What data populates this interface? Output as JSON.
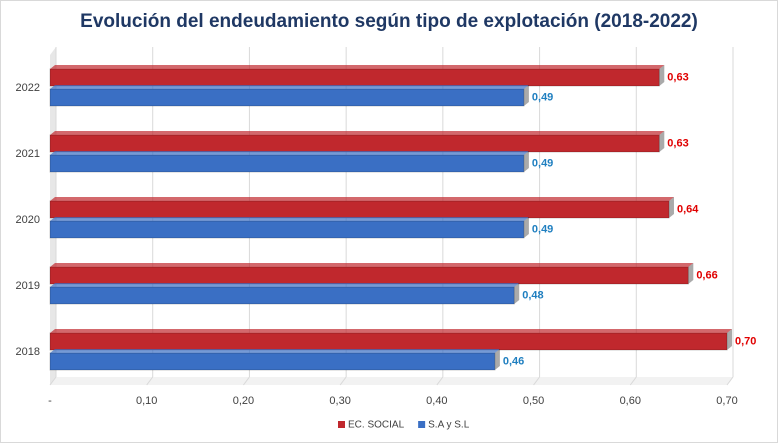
{
  "chart_data": {
    "type": "hbar",
    "title": "Evolución del endeudamiento según tipo de explotación (2018-2022)",
    "categories": [
      "2022",
      "2021",
      "2020",
      "2019",
      "2018"
    ],
    "series": [
      {
        "name": "EC. SOCIAL",
        "color": "#c0282d",
        "values": [
          0.63,
          0.63,
          0.64,
          0.66,
          0.7
        ],
        "value_labels": [
          "0,63",
          "0,63",
          "0,64",
          "0,66",
          "0,70"
        ]
      },
      {
        "name": "S.A y S.L",
        "color": "#3a6fc4",
        "values": [
          0.49,
          0.49,
          0.49,
          0.48,
          0.46
        ],
        "value_labels": [
          "0,49",
          "0,49",
          "0,49",
          "0,48",
          "0,46"
        ]
      }
    ],
    "xlim": [
      0,
      0.7
    ],
    "xticks": [
      {
        "value": 0,
        "label": "-"
      },
      {
        "value": 0.1,
        "label": "0,10"
      },
      {
        "value": 0.2,
        "label": "0,20"
      },
      {
        "value": 0.3,
        "label": "0,30"
      },
      {
        "value": 0.4,
        "label": "0,40"
      },
      {
        "value": 0.5,
        "label": "0,50"
      },
      {
        "value": 0.6,
        "label": "0,60"
      },
      {
        "value": 0.7,
        "label": "0,70"
      }
    ],
    "grid": true
  }
}
